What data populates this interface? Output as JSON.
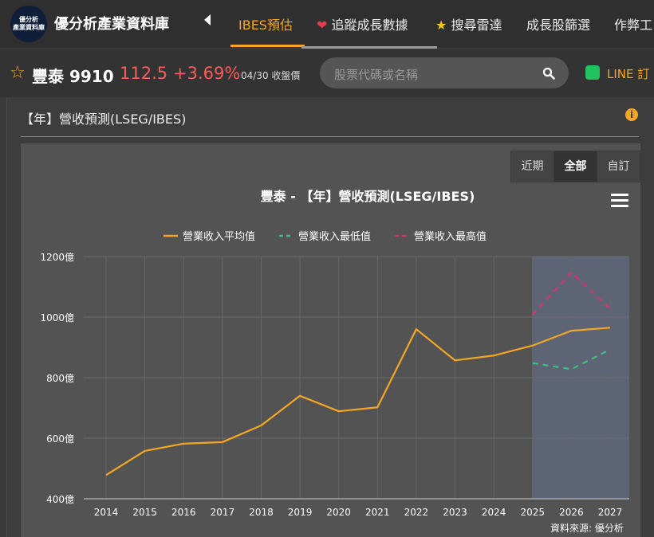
{
  "nav": {
    "logo_line1": "優分析",
    "logo_line2": "產業資料庫",
    "brand": "優分析產業資料庫",
    "items": [
      {
        "label": "IBES預估"
      },
      {
        "label": "追蹤成長數據"
      },
      {
        "label": "搜尋雷達"
      },
      {
        "label": "成長股篩選"
      },
      {
        "label": "作弊工"
      }
    ]
  },
  "stock": {
    "name": "豐泰 9910",
    "price": "112.5",
    "change": "+3.69%",
    "date_label": "04/30 收盤價"
  },
  "search": {
    "placeholder": "股票代碼或名稱"
  },
  "line_link": "LINE 訂",
  "section_title": "【年】營收預測(LSEG/IBES)",
  "range_buttons": [
    "近期",
    "全部",
    "自訂"
  ],
  "range_selected": "全部",
  "colors": {
    "accent": "#f5a623",
    "avg": "#f5a623",
    "min": "#3fbf7f",
    "max": "#d6336c",
    "forecast_band": "#5e6577"
  },
  "chart_data": {
    "type": "line",
    "title": "豐泰 - 【年】營收預測(LSEG/IBES)",
    "categories": [
      "2014",
      "2015",
      "2016",
      "2017",
      "2018",
      "2019",
      "2020",
      "2021",
      "2022",
      "2023",
      "2024",
      "2025",
      "2026",
      "2027"
    ],
    "y_tick_labels": [
      "400億",
      "600億",
      "800億",
      "1000億",
      "1200億"
    ],
    "ylim": [
      400,
      1200
    ],
    "y_unit": "億",
    "grid": true,
    "legend_position": "top-center",
    "forecast_region": [
      "2025",
      "2027"
    ],
    "series": [
      {
        "name": "營業收入平均值",
        "style": "solid",
        "color": "#f5a623",
        "values": [
          478,
          558,
          582,
          587,
          642,
          740,
          689,
          702,
          960,
          857,
          873,
          906,
          955,
          965
        ]
      },
      {
        "name": "營業收入最低值",
        "style": "dashed",
        "color": "#3fbf7f",
        "values": [
          null,
          null,
          null,
          null,
          null,
          null,
          null,
          null,
          null,
          null,
          null,
          848,
          828,
          893
        ]
      },
      {
        "name": "營業收入最高值",
        "style": "dashed",
        "color": "#d6336c",
        "values": [
          null,
          null,
          null,
          null,
          null,
          null,
          null,
          null,
          null,
          null,
          null,
          1008,
          1148,
          1028
        ]
      }
    ]
  },
  "source_text": "資料來源: 優分析"
}
